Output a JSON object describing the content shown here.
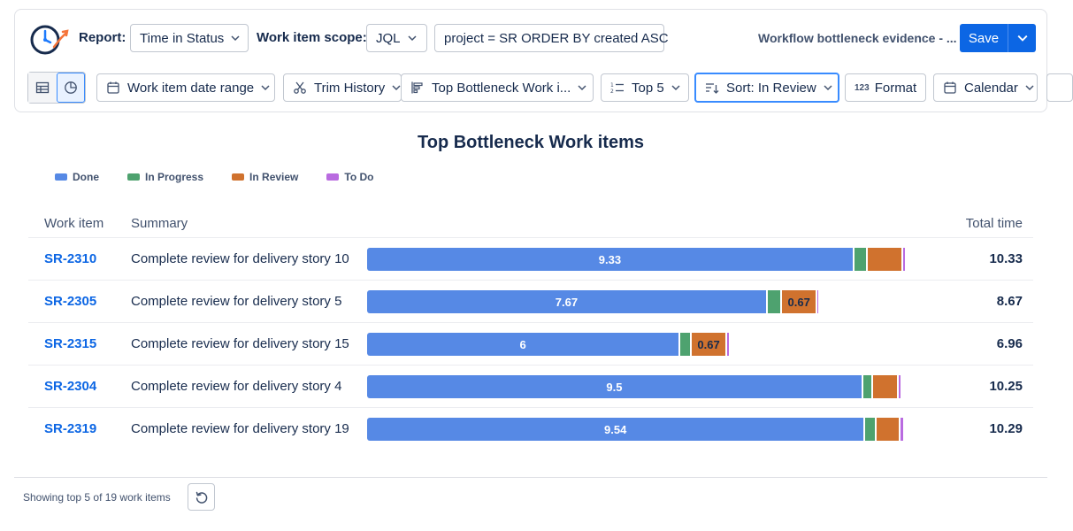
{
  "toolbar": {
    "report_label": "Report:",
    "report_value": "Time in Status",
    "scope_label": "Work item scope:",
    "scope_type": "JQL",
    "query": "project = SR ORDER BY created ASC",
    "evidence_title": "Workflow bottleneck evidence - ...",
    "save_label": "Save",
    "date_range": "Work item date range",
    "trim_history": "Trim History",
    "chart_selector": "Top Bottleneck Work i...",
    "top_n": "Top 5",
    "sort": "Sort: In Review",
    "format": "Format",
    "format_icon_text": "123",
    "calendar": "Calendar"
  },
  "chart_data": {
    "type": "bar",
    "title": "Top Bottleneck Work items",
    "legend": [
      {
        "name": "Done",
        "color": "#5689e5"
      },
      {
        "name": "In Progress",
        "color": "#4ea26f"
      },
      {
        "name": "In Review",
        "color": "#d0722e"
      },
      {
        "name": "To Do",
        "color": "#b96be0"
      }
    ],
    "columns": {
      "key": "Work item",
      "summary": "Summary",
      "total": "Total time"
    },
    "rows": [
      {
        "key": "SR-2310",
        "summary": "Complete review for delivery story 10",
        "done": 9.33,
        "in_progress": 0.25,
        "in_review": 0.68,
        "to_do": 0.07,
        "done_label": "9.33",
        "review_label": "",
        "total": "10.33"
      },
      {
        "key": "SR-2305",
        "summary": "Complete review for delivery story 5",
        "done": 7.67,
        "in_progress": 0.28,
        "in_review": 0.67,
        "to_do": 0.05,
        "done_label": "7.67",
        "review_label": "0.67",
        "total": "8.67"
      },
      {
        "key": "SR-2315",
        "summary": "Complete review for delivery story 15",
        "done": 6,
        "in_progress": 0.22,
        "in_review": 0.67,
        "to_do": 0.07,
        "done_label": "6",
        "review_label": "0.67",
        "total": "6.96"
      },
      {
        "key": "SR-2304",
        "summary": "Complete review for delivery story 4",
        "done": 9.5,
        "in_progress": 0.18,
        "in_review": 0.5,
        "to_do": 0.07,
        "done_label": "9.5",
        "review_label": "",
        "total": "10.25"
      },
      {
        "key": "SR-2319",
        "summary": "Complete review for delivery story 19",
        "done": 9.54,
        "in_progress": 0.22,
        "in_review": 0.46,
        "to_do": 0.07,
        "done_label": "9.54",
        "review_label": "",
        "total": "10.29"
      }
    ],
    "xlim": [
      0,
      10.5
    ]
  },
  "footer": {
    "showing_text": "Showing top 5 of 19 work items"
  }
}
